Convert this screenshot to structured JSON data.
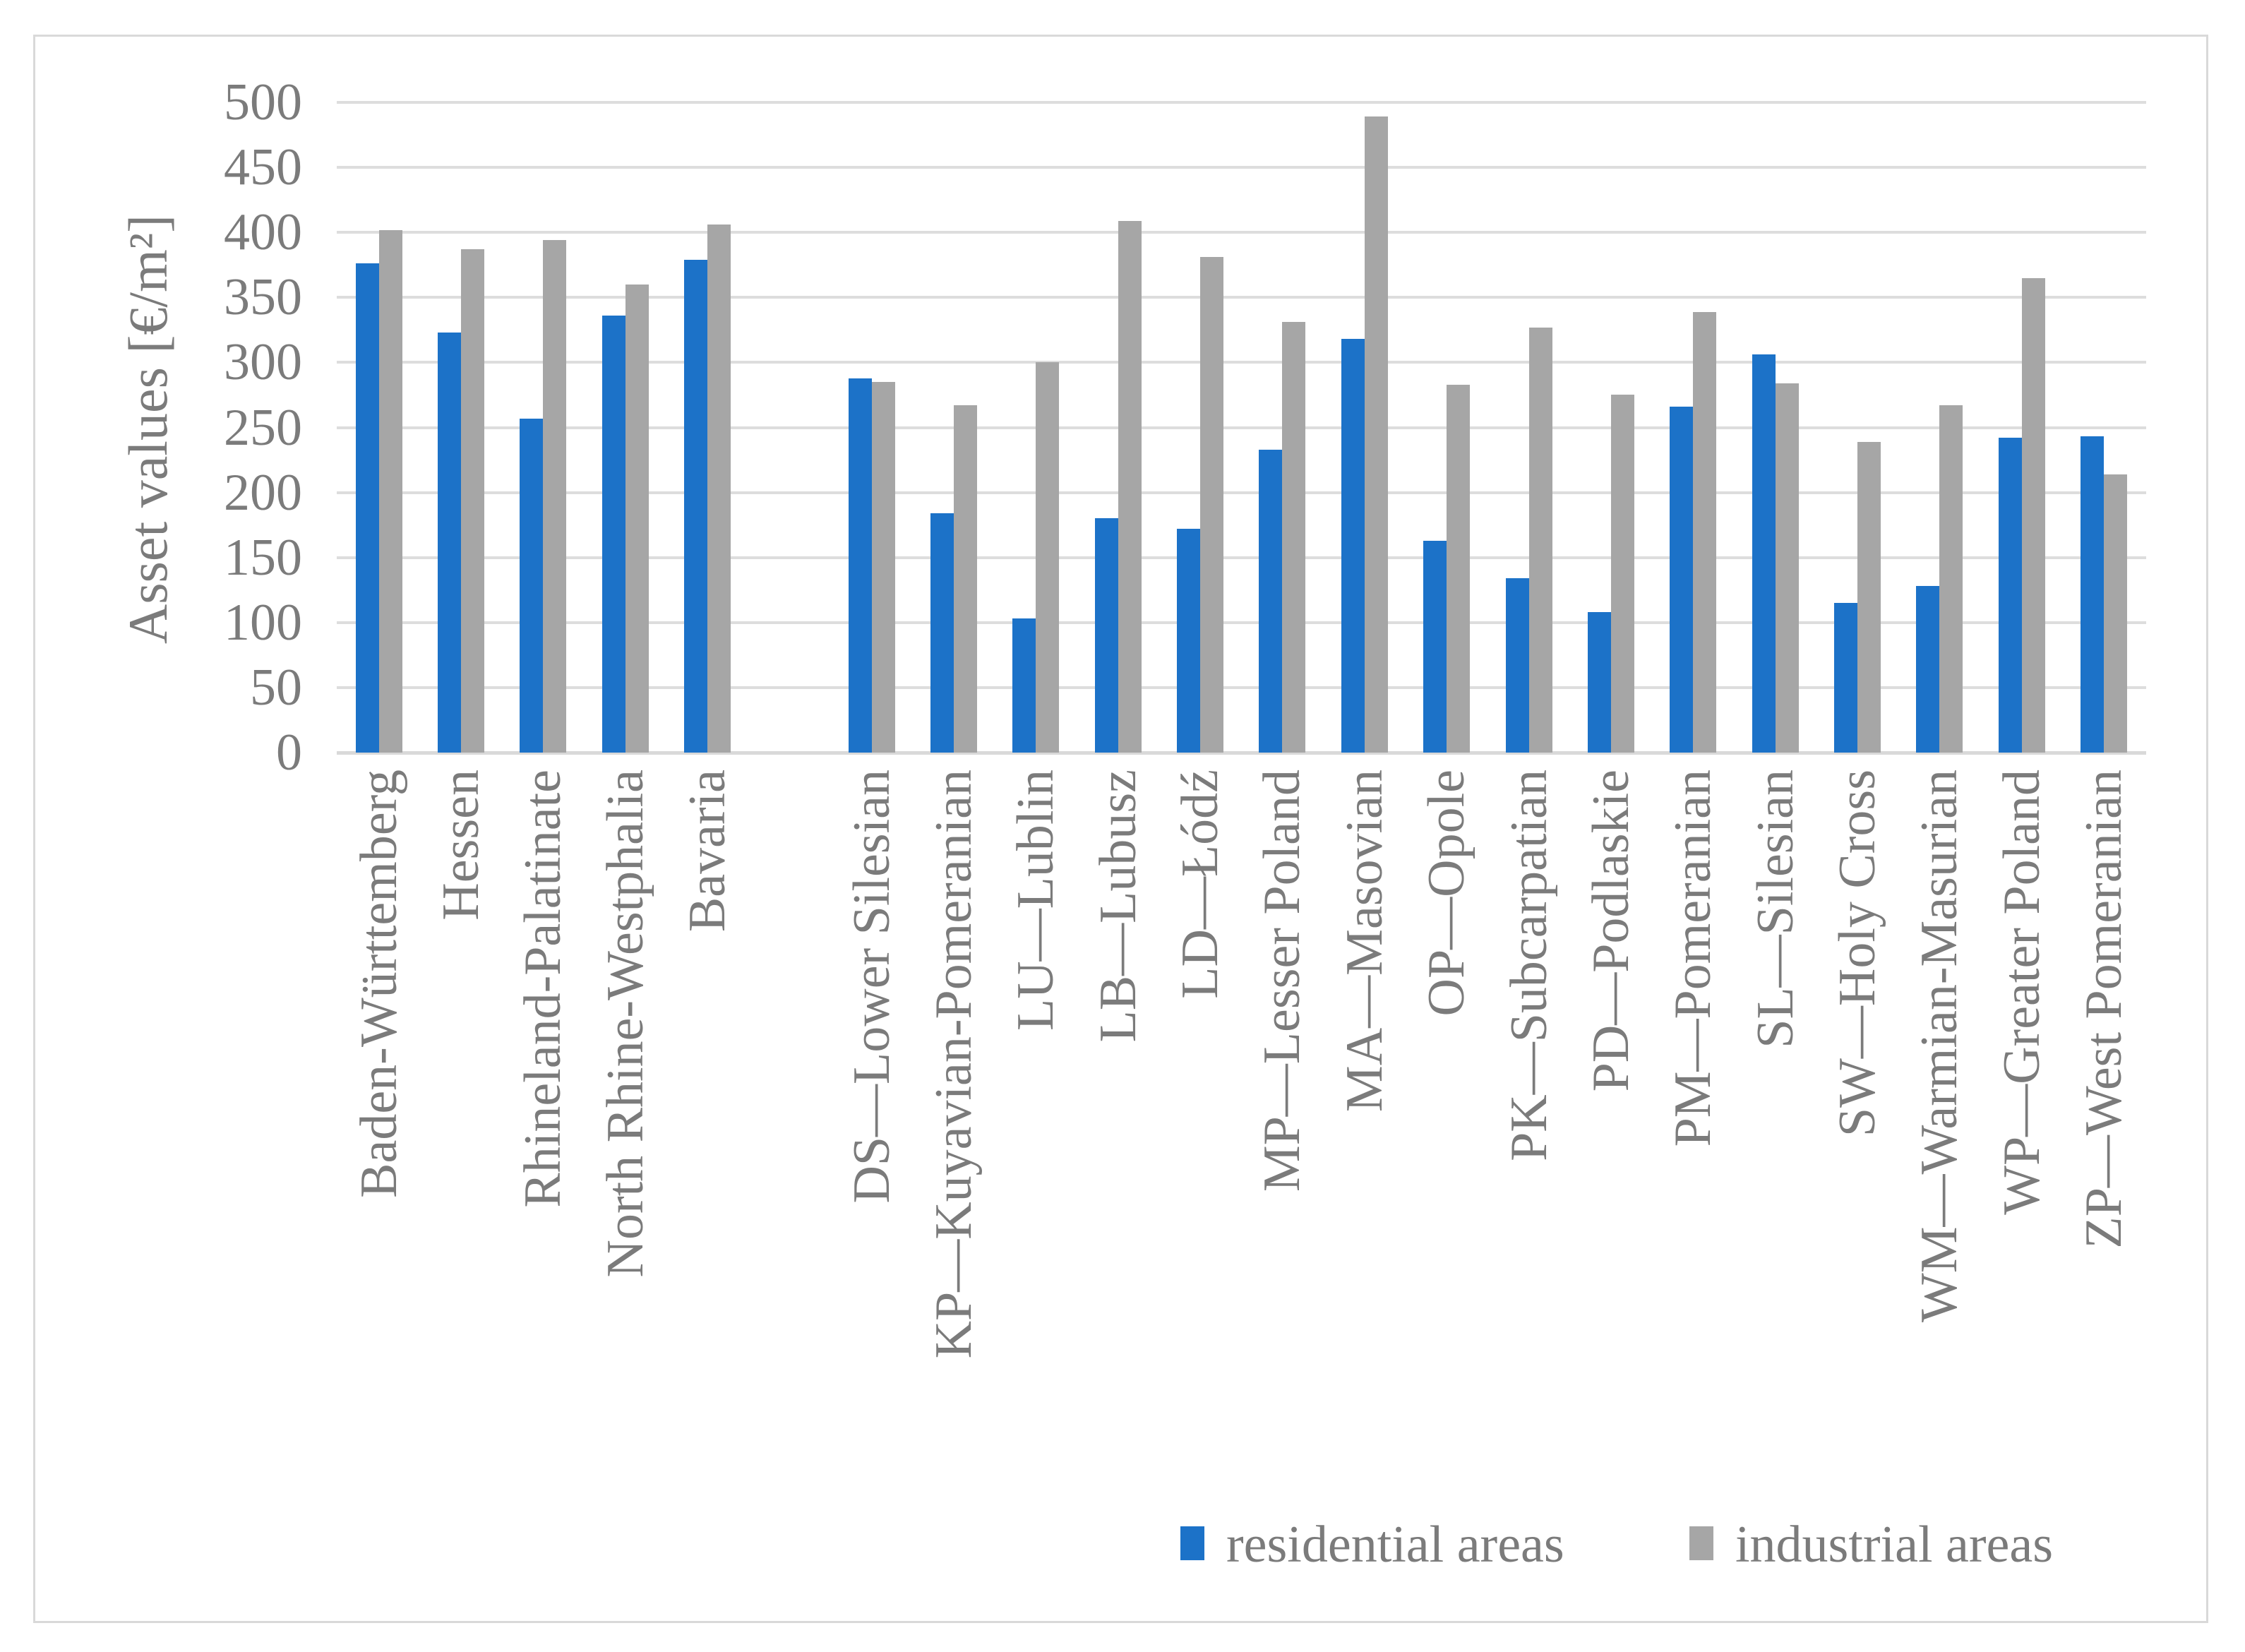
{
  "chart_data": {
    "type": "bar",
    "title": "",
    "ylabel": "Asset values [€/m²]",
    "xlabel": "",
    "ylim": [
      0,
      500
    ],
    "ytick_step": 50,
    "grid": "horizontal",
    "legend_position": "bottom",
    "gap_after_category_index": 4,
    "categories": [
      "Baden-Württemberg",
      "Hessen",
      "Rhineland-Palatinate",
      "North Rhine-Westphalia",
      "Bavaria",
      "DS—Lower Silesian",
      "KP—Kuyavian-Pomeranian",
      "LU—Lublin",
      "LB—Lubusz",
      "LD—Łódź",
      "MP—Lesser Poland",
      "MA—Masovian",
      "OP—Opole",
      "PK—Subcarpatian",
      "PD—Podlaskie",
      "PM—Pomeranian",
      "SL—Silesian",
      "SW—Holy Cross",
      "WM—Warmian-Masurian",
      "WP—Greater Poland",
      "ZP—West Pomeranian"
    ],
    "series": [
      {
        "name": "residential areas",
        "color": "#1C72C8",
        "values": [
          376,
          323,
          257,
          336,
          379,
          288,
          184,
          103,
          180,
          172,
          233,
          318,
          163,
          134,
          108,
          266,
          306,
          115,
          128,
          242,
          243
        ]
      },
      {
        "name": "industrial areas",
        "color": "#A6A6A6",
        "values": [
          402,
          387,
          394,
          360,
          406,
          285,
          267,
          300,
          409,
          381,
          331,
          489,
          283,
          327,
          275,
          339,
          284,
          239,
          267,
          365,
          214
        ]
      }
    ]
  },
  "colors": {
    "residential": "#1C72C8",
    "industrial": "#A6A6A6",
    "gridline": "#DDDDDD",
    "axis_text": "#7B7B7B",
    "frame_border": "#D9D9D9"
  }
}
